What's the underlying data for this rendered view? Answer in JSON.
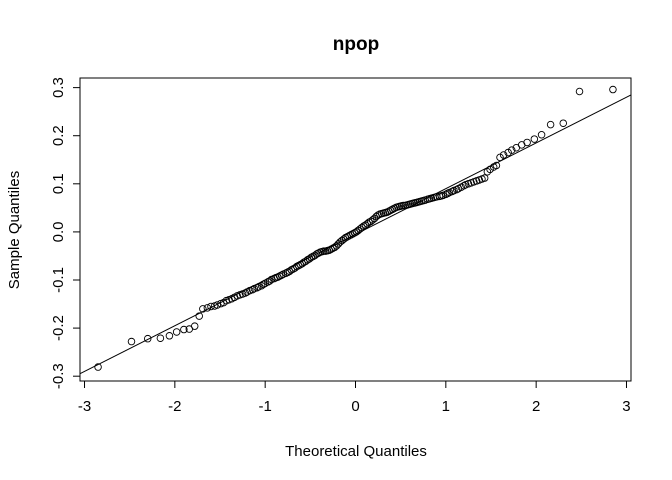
{
  "chart_data": {
    "type": "scatter",
    "title": "npop",
    "xlabel": "Theoretical Quantiles",
    "ylabel": "Sample Quantiles",
    "xlim": [
      -3.05,
      3.05
    ],
    "ylim": [
      -0.31,
      0.32
    ],
    "x_ticks": [
      -3,
      -2,
      -1,
      0,
      1,
      2,
      3
    ],
    "x_tick_labels": [
      "-3",
      "-2",
      "-1",
      "0",
      "1",
      "2",
      "3"
    ],
    "y_ticks": [
      -0.3,
      -0.2,
      -0.1,
      0.0,
      0.1,
      0.2,
      0.3
    ],
    "y_tick_labels": [
      "-0.3",
      "-0.2",
      "-0.1",
      "0.0",
      "0.1",
      "0.2",
      "0.3"
    ],
    "grid": false,
    "legend": "none",
    "reference_line": {
      "intercept": -0.005,
      "slope": 0.095
    },
    "series": [
      {
        "marker": "open-circle",
        "points": [
          [
            -2.85,
            -0.281
          ],
          [
            -2.48,
            -0.228
          ],
          [
            -2.3,
            -0.222
          ],
          [
            -2.16,
            -0.221
          ],
          [
            -2.06,
            -0.216
          ],
          [
            -1.98,
            -0.208
          ],
          [
            -1.9,
            -0.203
          ],
          [
            -1.84,
            -0.202
          ],
          [
            -1.78,
            -0.196
          ],
          [
            -1.73,
            -0.175
          ],
          [
            -1.69,
            -0.16
          ],
          [
            -1.64,
            -0.158
          ],
          [
            -1.6,
            -0.155
          ],
          [
            -1.56,
            -0.154
          ],
          [
            -1.53,
            -0.152
          ],
          [
            -1.49,
            -0.149
          ],
          [
            -1.46,
            -0.147
          ],
          [
            -1.43,
            -0.143
          ],
          [
            -1.4,
            -0.141
          ],
          [
            -1.37,
            -0.139
          ],
          [
            -1.34,
            -0.136
          ],
          [
            -1.31,
            -0.133
          ],
          [
            -1.28,
            -0.131
          ],
          [
            -1.25,
            -0.129
          ],
          [
            -1.22,
            -0.127
          ],
          [
            -1.2,
            -0.125
          ],
          [
            -1.17,
            -0.122
          ],
          [
            -1.14,
            -0.12
          ],
          [
            -1.12,
            -0.118
          ],
          [
            -1.09,
            -0.116
          ],
          [
            -1.07,
            -0.114
          ],
          [
            -1.04,
            -0.112
          ],
          [
            -1.02,
            -0.109
          ],
          [
            -1.0,
            -0.107
          ],
          [
            -0.97,
            -0.104
          ],
          [
            -0.95,
            -0.102
          ],
          [
            -0.93,
            -0.099
          ],
          [
            -0.9,
            -0.097
          ],
          [
            -0.88,
            -0.095
          ],
          [
            -0.86,
            -0.094
          ],
          [
            -0.84,
            -0.092
          ],
          [
            -0.82,
            -0.09
          ],
          [
            -0.8,
            -0.088
          ],
          [
            -0.77,
            -0.086
          ],
          [
            -0.75,
            -0.084
          ],
          [
            -0.73,
            -0.082
          ],
          [
            -0.71,
            -0.079
          ],
          [
            -0.69,
            -0.077
          ],
          [
            -0.67,
            -0.075
          ],
          [
            -0.65,
            -0.072
          ],
          [
            -0.63,
            -0.07
          ],
          [
            -0.61,
            -0.068
          ],
          [
            -0.59,
            -0.066
          ],
          [
            -0.57,
            -0.063
          ],
          [
            -0.55,
            -0.061
          ],
          [
            -0.53,
            -0.058
          ],
          [
            -0.51,
            -0.056
          ],
          [
            -0.49,
            -0.053
          ],
          [
            -0.47,
            -0.051
          ],
          [
            -0.45,
            -0.049
          ],
          [
            -0.43,
            -0.046
          ],
          [
            -0.41,
            -0.044
          ],
          [
            -0.39,
            -0.042
          ],
          [
            -0.37,
            -0.041
          ],
          [
            -0.35,
            -0.04
          ],
          [
            -0.33,
            -0.04
          ],
          [
            -0.31,
            -0.039
          ],
          [
            -0.29,
            -0.038
          ],
          [
            -0.27,
            -0.036
          ],
          [
            -0.25,
            -0.034
          ],
          [
            -0.23,
            -0.032
          ],
          [
            -0.21,
            -0.029
          ],
          [
            -0.19,
            -0.025
          ],
          [
            -0.17,
            -0.021
          ],
          [
            -0.15,
            -0.018
          ],
          [
            -0.13,
            -0.015
          ],
          [
            -0.11,
            -0.012
          ],
          [
            -0.09,
            -0.01
          ],
          [
            -0.07,
            -0.008
          ],
          [
            -0.05,
            -0.006
          ],
          [
            -0.03,
            -0.004
          ],
          [
            -0.01,
            -0.002
          ],
          [
            0.01,
            0.0
          ],
          [
            0.03,
            0.003
          ],
          [
            0.05,
            0.006
          ],
          [
            0.07,
            0.009
          ],
          [
            0.09,
            0.012
          ],
          [
            0.11,
            0.014
          ],
          [
            0.13,
            0.017
          ],
          [
            0.15,
            0.02
          ],
          [
            0.17,
            0.022
          ],
          [
            0.19,
            0.025
          ],
          [
            0.21,
            0.028
          ],
          [
            0.23,
            0.032
          ],
          [
            0.25,
            0.035
          ],
          [
            0.27,
            0.037
          ],
          [
            0.29,
            0.038
          ],
          [
            0.31,
            0.039
          ],
          [
            0.33,
            0.04
          ],
          [
            0.35,
            0.041
          ],
          [
            0.37,
            0.043
          ],
          [
            0.39,
            0.045
          ],
          [
            0.41,
            0.047
          ],
          [
            0.43,
            0.049
          ],
          [
            0.45,
            0.051
          ],
          [
            0.47,
            0.052
          ],
          [
            0.49,
            0.053
          ],
          [
            0.51,
            0.054
          ],
          [
            0.53,
            0.055
          ],
          [
            0.55,
            0.055
          ],
          [
            0.57,
            0.056
          ],
          [
            0.59,
            0.057
          ],
          [
            0.61,
            0.058
          ],
          [
            0.63,
            0.059
          ],
          [
            0.65,
            0.06
          ],
          [
            0.67,
            0.061
          ],
          [
            0.69,
            0.062
          ],
          [
            0.71,
            0.063
          ],
          [
            0.73,
            0.064
          ],
          [
            0.75,
            0.065
          ],
          [
            0.77,
            0.066
          ],
          [
            0.8,
            0.068
          ],
          [
            0.82,
            0.069
          ],
          [
            0.84,
            0.07
          ],
          [
            0.86,
            0.071
          ],
          [
            0.88,
            0.072
          ],
          [
            0.9,
            0.073
          ],
          [
            0.93,
            0.074
          ],
          [
            0.95,
            0.075
          ],
          [
            0.97,
            0.076
          ],
          [
            1.0,
            0.078
          ],
          [
            1.02,
            0.08
          ],
          [
            1.04,
            0.082
          ],
          [
            1.07,
            0.084
          ],
          [
            1.09,
            0.086
          ],
          [
            1.12,
            0.088
          ],
          [
            1.14,
            0.09
          ],
          [
            1.17,
            0.093
          ],
          [
            1.2,
            0.096
          ],
          [
            1.22,
            0.098
          ],
          [
            1.25,
            0.1
          ],
          [
            1.28,
            0.102
          ],
          [
            1.31,
            0.104
          ],
          [
            1.34,
            0.106
          ],
          [
            1.37,
            0.108
          ],
          [
            1.4,
            0.11
          ],
          [
            1.43,
            0.112
          ],
          [
            1.46,
            0.125
          ],
          [
            1.49,
            0.13
          ],
          [
            1.53,
            0.135
          ],
          [
            1.56,
            0.138
          ],
          [
            1.6,
            0.155
          ],
          [
            1.64,
            0.16
          ],
          [
            1.69,
            0.165
          ],
          [
            1.73,
            0.17
          ],
          [
            1.78,
            0.175
          ],
          [
            1.84,
            0.181
          ],
          [
            1.9,
            0.186
          ],
          [
            1.98,
            0.193
          ],
          [
            2.06,
            0.202
          ],
          [
            2.16,
            0.223
          ],
          [
            2.3,
            0.226
          ],
          [
            2.48,
            0.292
          ],
          [
            2.85,
            0.296
          ]
        ]
      }
    ]
  }
}
